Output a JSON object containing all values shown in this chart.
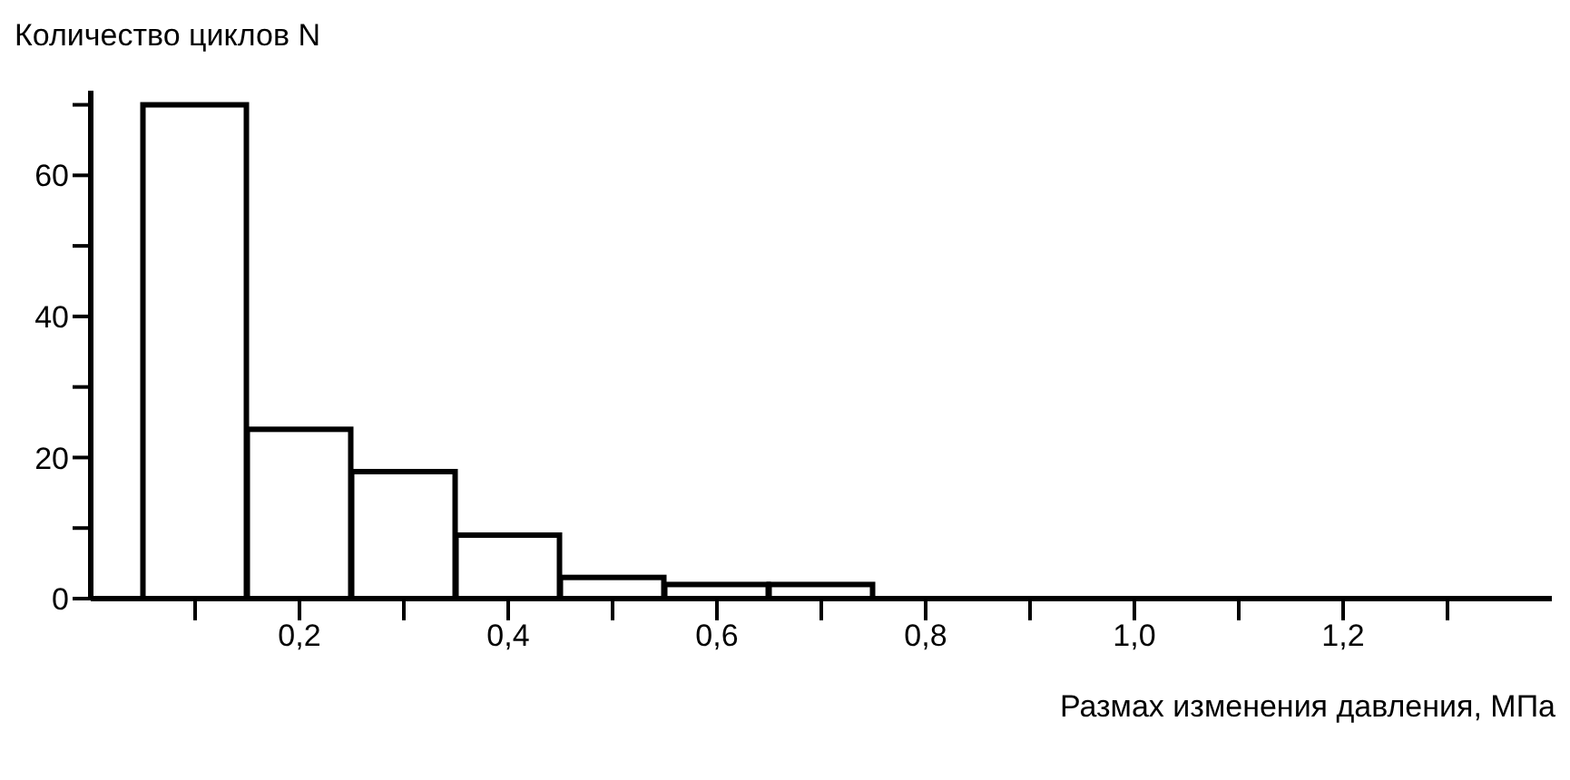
{
  "chart_data": {
    "type": "histogram",
    "ylabel": "Количество циклов N",
    "xlabel": "Размах изменения давления, МПа",
    "bins": [
      0.05,
      0.15,
      0.25,
      0.35,
      0.45,
      0.55,
      0.65,
      0.75
    ],
    "values": [
      70,
      24,
      18,
      9,
      3,
      2,
      2
    ],
    "color": "#ffffff",
    "xlim": [
      0,
      1.4
    ],
    "xticks": [
      {
        "value": 0.1,
        "label": null
      },
      {
        "value": 0.2,
        "label": "0,2"
      },
      {
        "value": 0.3,
        "label": null
      },
      {
        "value": 0.4,
        "label": "0,4"
      },
      {
        "value": 0.5,
        "label": null
      },
      {
        "value": 0.6,
        "label": "0,6"
      },
      {
        "value": 0.7,
        "label": null
      },
      {
        "value": 0.8,
        "label": "0,8"
      },
      {
        "value": 0.9,
        "label": null
      },
      {
        "value": 1.0,
        "label": "1,0"
      },
      {
        "value": 1.1,
        "label": null
      },
      {
        "value": 1.2,
        "label": "1,2"
      },
      {
        "value": 1.3,
        "label": null
      }
    ],
    "ylim": [
      0,
      72
    ],
    "yticks": [
      0,
      {
        "value": 10,
        "label": null
      },
      20,
      {
        "value": 30,
        "label": null
      },
      40,
      {
        "value": 50,
        "label": null
      },
      60,
      {
        "value": 70,
        "label": null
      }
    ],
    "grid": false
  }
}
